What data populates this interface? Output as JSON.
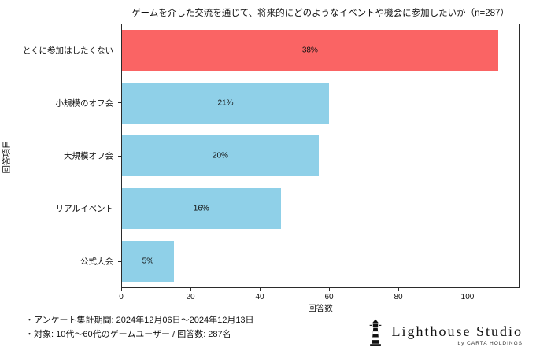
{
  "chart_data": {
    "type": "bar",
    "orientation": "horizontal",
    "title": "ゲームを介した交流を通じて、将来的にどのようなイベントや機会に参加したいか（n=287）",
    "categories": [
      "とくに参加はしたくない",
      "小規模のオフ会",
      "大規模オフ会",
      "リアルイベント",
      "公式大会"
    ],
    "values": [
      109,
      60,
      57,
      46,
      15
    ],
    "percent_labels": [
      "38%",
      "21%",
      "20%",
      "16%",
      "5%"
    ],
    "bar_colors": [
      "#fa6464",
      "#8fd0e8",
      "#8fd0e8",
      "#8fd0e8",
      "#8fd0e8"
    ],
    "xlabel": "回答数",
    "ylabel": "回答項目",
    "xlim": [
      0,
      115
    ],
    "xticks": [
      0,
      20,
      40,
      60,
      80,
      100
    ],
    "grid": false,
    "legend": "none"
  },
  "footer": {
    "lines": [
      "・アンケート集計期間: 2024年12月06日〜2024年12月13日",
      "・対象: 10代〜60代のゲームユーザー / 回答数: 287名"
    ]
  },
  "logo": {
    "icon": "lighthouse-icon",
    "name": "Lighthouse Studio",
    "byline": "by CARTA HOLDINGS"
  }
}
